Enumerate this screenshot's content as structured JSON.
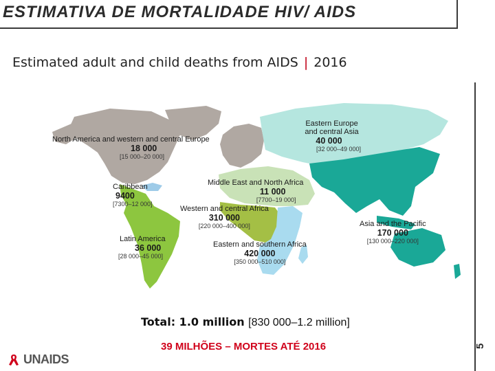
{
  "header": {
    "title": "ESTIMATIVA DE MORTALIDADE HIV/ AIDS",
    "subtitle_text": "Estimated adult and child deaths from AIDS",
    "subtitle_sep": "|",
    "subtitle_year": "2016"
  },
  "regions": [
    {
      "key": "north-america",
      "name": "North America and western and central Europe",
      "value": "18 000",
      "range": "[15 000–20 000]",
      "color": "#b0a8a2"
    },
    {
      "key": "eastern-europe",
      "name": "Eastern Europe",
      "name2": "and central Asia",
      "value": "40 000",
      "range": "[32 000–49 000]",
      "color": "#b5e6df"
    },
    {
      "key": "caribbean",
      "name": "Caribbean",
      "value": "9400",
      "range": "[7300–12 000]",
      "color": "#9ecbe8"
    },
    {
      "key": "mena",
      "name": "Middle East and North Africa",
      "value": "11 000",
      "range": "[7700–19 000]",
      "color": "#c9e2b7"
    },
    {
      "key": "wca",
      "name": "Western and central Africa",
      "value": "310 000",
      "range": "[220 000–400 000]",
      "color": "#a4bf45"
    },
    {
      "key": "latin-america",
      "name": "Latin America",
      "value": "36 000",
      "range": "[28 000–45 000]",
      "color": "#8dc63f"
    },
    {
      "key": "esa",
      "name": "Eastern and southern Africa",
      "value": "420 000",
      "range": "[350 000–510 000]",
      "color": "#a9dbef"
    },
    {
      "key": "asia-pacific",
      "name": "Asia and the Pacific",
      "value": "170 000",
      "range": "[130 000–220 000]",
      "color": "#1aa897"
    }
  ],
  "total": {
    "label": "Total: 1.0 million",
    "range": "[830 000–1.2 million]"
  },
  "footer": "39 MILHÕES – MORTES ATÉ 2016",
  "logo": {
    "text": "UNAIDS"
  },
  "page_number": "5"
}
